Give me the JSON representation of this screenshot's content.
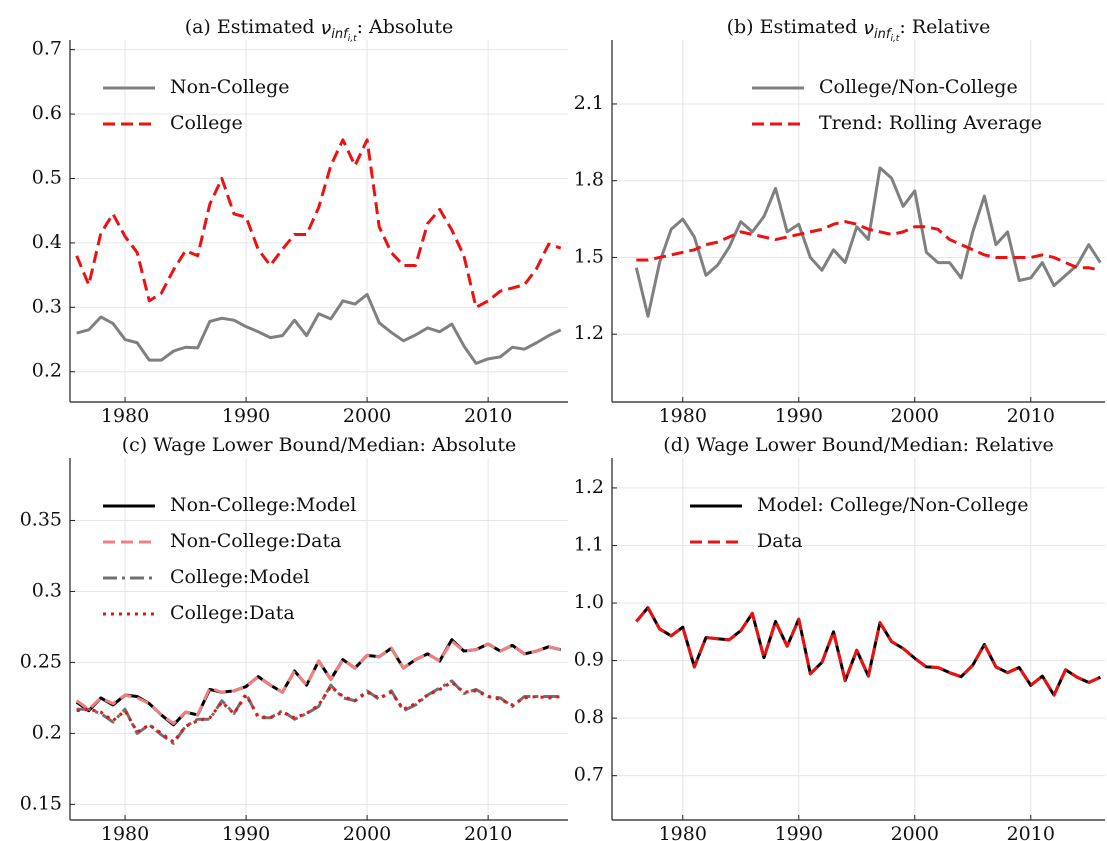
{
  "chart_data": [
    {
      "type": "line",
      "title": {
        "before": "(a) Estimated ",
        "symbol": "ν",
        "sub": "inf",
        "subsub": "i,t",
        "after": ": Absolute"
      },
      "x": [
        1976,
        1977,
        1978,
        1979,
        1980,
        1981,
        1982,
        1983,
        1984,
        1985,
        1986,
        1987,
        1988,
        1989,
        1990,
        1991,
        1992,
        1993,
        1994,
        1995,
        1996,
        1997,
        1998,
        1999,
        2000,
        2001,
        2002,
        2003,
        2004,
        2005,
        2006,
        2007,
        2008,
        2009,
        2010,
        2011,
        2012,
        2013,
        2014,
        2015,
        2016
      ],
      "series": [
        {
          "name": "Non-College",
          "color": "#808080",
          "dash": "solid",
          "values": [
            0.26,
            0.265,
            0.285,
            0.275,
            0.25,
            0.245,
            0.218,
            0.218,
            0.232,
            0.238,
            0.237,
            0.278,
            0.283,
            0.28,
            0.27,
            0.262,
            0.253,
            0.256,
            0.28,
            0.256,
            0.29,
            0.282,
            0.31,
            0.305,
            0.32,
            0.276,
            0.261,
            0.248,
            0.257,
            0.268,
            0.262,
            0.274,
            0.24,
            0.213,
            0.22,
            0.223,
            0.238,
            0.235,
            0.245,
            0.256,
            0.265
          ]
        },
        {
          "name": "College",
          "color": "#ee1111",
          "dash": "dashed",
          "values": [
            0.38,
            0.335,
            0.415,
            0.445,
            0.41,
            0.385,
            0.31,
            0.322,
            0.358,
            0.388,
            0.38,
            0.46,
            0.5,
            0.445,
            0.44,
            0.39,
            0.365,
            0.39,
            0.413,
            0.413,
            0.455,
            0.52,
            0.56,
            0.52,
            0.56,
            0.425,
            0.385,
            0.365,
            0.365,
            0.43,
            0.452,
            0.42,
            0.38,
            0.3,
            0.31,
            0.325,
            0.33,
            0.335,
            0.36,
            0.398,
            0.392
          ]
        }
      ],
      "xlim": [
        1975.45,
        2016.6
      ],
      "xticks": [
        1980,
        1990,
        2000,
        2010
      ],
      "ylim": [
        0.153,
        0.715
      ],
      "yticks": [
        0.2,
        0.3,
        0.4,
        0.5,
        0.6,
        0.7
      ],
      "grid": true,
      "legend": "upper left"
    },
    {
      "type": "line",
      "title": {
        "before": "(b) Estimated ",
        "symbol": "ν",
        "sub": "inf",
        "subsub": "i,t",
        "after": ": Relative"
      },
      "x": [
        1976,
        1977,
        1978,
        1979,
        1980,
        1981,
        1982,
        1983,
        1984,
        1985,
        1986,
        1987,
        1988,
        1989,
        1990,
        1991,
        1992,
        1993,
        1994,
        1995,
        1996,
        1997,
        1998,
        1999,
        2000,
        2001,
        2002,
        2003,
        2004,
        2005,
        2006,
        2007,
        2008,
        2009,
        2010,
        2011,
        2012,
        2013,
        2014,
        2015,
        2016
      ],
      "series": [
        {
          "name": "College/Non-College",
          "color": "#808080",
          "dash": "solid",
          "values": [
            1.46,
            1.27,
            1.48,
            1.61,
            1.65,
            1.58,
            1.43,
            1.47,
            1.54,
            1.64,
            1.6,
            1.66,
            1.77,
            1.6,
            1.63,
            1.5,
            1.45,
            1.53,
            1.48,
            1.62,
            1.57,
            1.85,
            1.81,
            1.7,
            1.76,
            1.52,
            1.48,
            1.48,
            1.42,
            1.6,
            1.74,
            1.55,
            1.6,
            1.41,
            1.42,
            1.48,
            1.39,
            1.43,
            1.47,
            1.55,
            1.48
          ]
        },
        {
          "name": "Trend: Rolling Average",
          "color": "#ee1111",
          "dash": "dashed",
          "values": [
            1.49,
            1.49,
            1.5,
            1.51,
            1.52,
            1.53,
            1.55,
            1.56,
            1.58,
            1.6,
            1.59,
            1.58,
            1.57,
            1.58,
            1.59,
            1.6,
            1.61,
            1.63,
            1.64,
            1.63,
            1.61,
            1.6,
            1.59,
            1.6,
            1.62,
            1.62,
            1.61,
            1.57,
            1.55,
            1.53,
            1.51,
            1.5,
            1.5,
            1.5,
            1.5,
            1.51,
            1.5,
            1.48,
            1.46,
            1.46,
            1.45
          ]
        }
      ],
      "xlim": [
        1973.9,
        2016.4
      ],
      "xticks": [
        1980,
        1990,
        2000,
        2010
      ],
      "ylim": [
        0.935,
        2.35
      ],
      "yticks": [
        1.2,
        1.5,
        1.8,
        2.1
      ],
      "grid": true,
      "legend": "upper right"
    },
    {
      "type": "line",
      "title": "(c) Wage Lower Bound/Median: Absolute",
      "x": [
        1976,
        1977,
        1978,
        1979,
        1980,
        1981,
        1982,
        1983,
        1984,
        1985,
        1986,
        1987,
        1988,
        1989,
        1990,
        1991,
        1992,
        1993,
        1994,
        1995,
        1996,
        1997,
        1998,
        1999,
        2000,
        2001,
        2002,
        2003,
        2004,
        2005,
        2006,
        2007,
        2008,
        2009,
        2010,
        2011,
        2012,
        2013,
        2014,
        2015,
        2016
      ],
      "series": [
        {
          "name": "Non-College:Model",
          "color": "#000000",
          "dash": "solid",
          "values": [
            0.222,
            0.216,
            0.225,
            0.22,
            0.227,
            0.226,
            0.221,
            0.213,
            0.206,
            0.215,
            0.213,
            0.231,
            0.229,
            0.23,
            0.233,
            0.24,
            0.234,
            0.229,
            0.244,
            0.234,
            0.251,
            0.238,
            0.252,
            0.246,
            0.255,
            0.254,
            0.26,
            0.246,
            0.252,
            0.256,
            0.251,
            0.266,
            0.258,
            0.259,
            0.263,
            0.258,
            0.262,
            0.256,
            0.258,
            0.261,
            0.259
          ]
        },
        {
          "name": "Non-College:Data",
          "color": "#f08080",
          "dash": "dashed",
          "values": [
            0.223,
            0.217,
            0.225,
            0.221,
            0.227,
            0.225,
            0.221,
            0.213,
            0.207,
            0.215,
            0.213,
            0.232,
            0.229,
            0.23,
            0.233,
            0.24,
            0.234,
            0.229,
            0.244,
            0.234,
            0.251,
            0.238,
            0.252,
            0.246,
            0.255,
            0.254,
            0.26,
            0.246,
            0.252,
            0.256,
            0.251,
            0.265,
            0.258,
            0.259,
            0.263,
            0.258,
            0.262,
            0.256,
            0.258,
            0.261,
            0.259
          ]
        },
        {
          "name": "College:Model",
          "color": "#707070",
          "dash": "dashdot",
          "values": [
            0.217,
            0.217,
            0.214,
            0.208,
            0.217,
            0.2,
            0.206,
            0.199,
            0.193,
            0.205,
            0.21,
            0.21,
            0.223,
            0.214,
            0.228,
            0.211,
            0.211,
            0.216,
            0.21,
            0.214,
            0.219,
            0.234,
            0.225,
            0.223,
            0.23,
            0.224,
            0.23,
            0.216,
            0.22,
            0.227,
            0.232,
            0.237,
            0.228,
            0.231,
            0.226,
            0.225,
            0.219,
            0.226,
            0.226,
            0.226,
            0.226
          ]
        },
        {
          "name": "College:Data",
          "color": "#ee1111",
          "dash": "dotted",
          "values": [
            0.216,
            0.217,
            0.215,
            0.209,
            0.216,
            0.201,
            0.206,
            0.2,
            0.194,
            0.205,
            0.209,
            0.211,
            0.222,
            0.214,
            0.227,
            0.212,
            0.211,
            0.215,
            0.211,
            0.214,
            0.22,
            0.233,
            0.226,
            0.223,
            0.229,
            0.225,
            0.229,
            0.217,
            0.221,
            0.227,
            0.231,
            0.236,
            0.229,
            0.23,
            0.226,
            0.224,
            0.22,
            0.225,
            0.226,
            0.225,
            0.226
          ]
        }
      ],
      "xlim": [
        1975.45,
        2016.6
      ],
      "xticks": [
        1980,
        1990,
        2000,
        2010
      ],
      "ylim": [
        0.139,
        0.394
      ],
      "yticks": [
        0.15,
        0.2,
        0.25,
        0.3,
        0.35
      ],
      "grid": true,
      "legend": "upper left"
    },
    {
      "type": "line",
      "title": "(d) Wage Lower Bound/Median: Relative",
      "x": [
        1976,
        1977,
        1978,
        1979,
        1980,
        1981,
        1982,
        1983,
        1984,
        1985,
        1986,
        1987,
        1988,
        1989,
        1990,
        1991,
        1992,
        1993,
        1994,
        1995,
        1996,
        1997,
        1998,
        1999,
        2000,
        2001,
        2002,
        2003,
        2004,
        2005,
        2006,
        2007,
        2008,
        2009,
        2010,
        2011,
        2012,
        2013,
        2014,
        2015,
        2016
      ],
      "series": [
        {
          "name": "Model: College/Non-College",
          "color": "#000000",
          "dash": "solid",
          "values": [
            0.968,
            0.992,
            0.955,
            0.943,
            0.958,
            0.889,
            0.94,
            0.938,
            0.936,
            0.952,
            0.982,
            0.905,
            0.968,
            0.925,
            0.972,
            0.877,
            0.897,
            0.95,
            0.865,
            0.918,
            0.873,
            0.966,
            0.933,
            0.921,
            0.904,
            0.889,
            0.888,
            0.879,
            0.872,
            0.892,
            0.928,
            0.889,
            0.879,
            0.888,
            0.857,
            0.873,
            0.84,
            0.884,
            0.871,
            0.862,
            0.871
          ]
        },
        {
          "name": "Data",
          "color": "#ee1111",
          "dash": "dashed",
          "values": [
            0.968,
            0.992,
            0.955,
            0.943,
            0.958,
            0.889,
            0.94,
            0.938,
            0.936,
            0.952,
            0.982,
            0.905,
            0.968,
            0.925,
            0.972,
            0.877,
            0.897,
            0.95,
            0.865,
            0.918,
            0.873,
            0.966,
            0.933,
            0.921,
            0.904,
            0.889,
            0.888,
            0.879,
            0.872,
            0.892,
            0.928,
            0.889,
            0.879,
            0.888,
            0.857,
            0.873,
            0.84,
            0.884,
            0.871,
            0.862,
            0.871
          ]
        }
      ],
      "xlim": [
        1973.9,
        2016.4
      ],
      "xticks": [
        1980,
        1990,
        2000,
        2010
      ],
      "ylim": [
        0.623,
        1.252
      ],
      "yticks": [
        0.7,
        0.8,
        0.9,
        1.0,
        1.1,
        1.2
      ],
      "grid": true,
      "legend": "upper center"
    }
  ]
}
